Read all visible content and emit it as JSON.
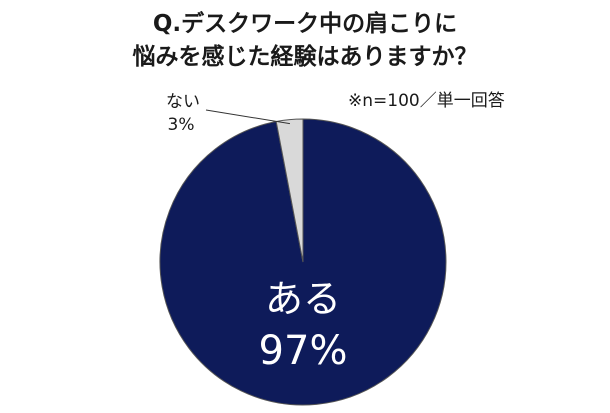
{
  "title": {
    "line1": "Q.デスクワーク中の肩こりに",
    "line2": "悩みを感じた経験はありますか？"
  },
  "note": "※n=100／単一回答",
  "chart_data": {
    "type": "pie",
    "title": "Q.デスクワーク中の肩こりに悩みを感じた経験はありますか？",
    "slices": [
      {
        "label": "ある",
        "value": 97,
        "value_label": "97%",
        "color": "#0e1b5a"
      },
      {
        "label": "ない",
        "value": 3,
        "value_label": "3%",
        "color": "#d9d9d9"
      }
    ],
    "start": "12 o'clock",
    "direction": "clockwise",
    "legend": "none",
    "label_placement": {
      "ある": "inside",
      "ない": "outside with leader line"
    }
  }
}
